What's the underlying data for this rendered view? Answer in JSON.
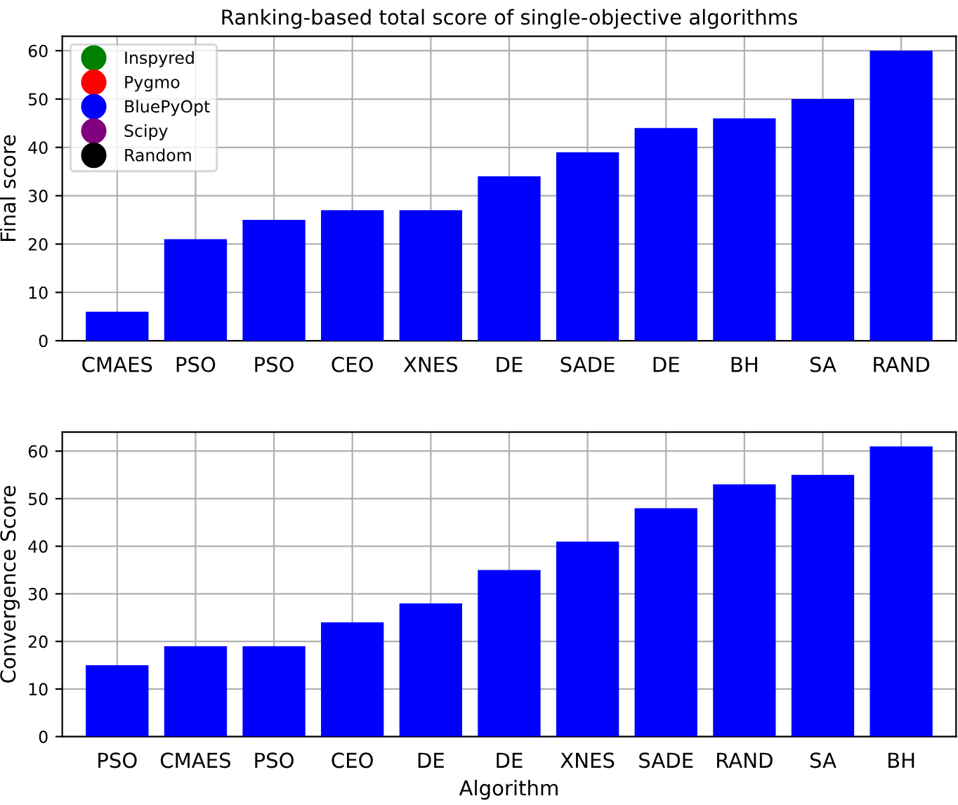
{
  "chart_data": [
    {
      "type": "bar",
      "title": "Ranking-based total score of single-objective algorithms",
      "ylabel": "Final score",
      "categories": [
        "CMAES",
        "PSO",
        "PSO",
        "CEO",
        "XNES",
        "DE",
        "SADE",
        "DE",
        "BH",
        "SA",
        "RAND"
      ],
      "series": [
        {
          "name": "Inspyred",
          "type": "scatter",
          "color": "#008000",
          "values": [
            null,
            null,
            null,
            null,
            null,
            null,
            null,
            null,
            null,
            null,
            null
          ]
        },
        {
          "name": "Pygmo",
          "type": "scatter",
          "color": "#ff0000",
          "values": [
            null,
            null,
            null,
            null,
            null,
            null,
            null,
            null,
            null,
            null,
            null
          ]
        },
        {
          "name": "BluePyOpt",
          "type": "scatter",
          "color": "#0000ff",
          "values": [
            null,
            null,
            null,
            null,
            null,
            null,
            null,
            null,
            null,
            null,
            null
          ]
        },
        {
          "name": "Scipy",
          "type": "scatter",
          "color": "#800080",
          "values": [
            null,
            null,
            null,
            null,
            null,
            null,
            null,
            null,
            null,
            null,
            null
          ]
        },
        {
          "name": "Random",
          "type": "scatter",
          "color": "#000000",
          "values": [
            null,
            null,
            null,
            null,
            null,
            null,
            null,
            null,
            null,
            null,
            null
          ]
        },
        {
          "color": "#0000ff",
          "values": [
            6,
            21,
            25,
            27,
            27,
            34,
            39,
            44,
            46,
            50,
            60
          ]
        }
      ],
      "ylim": [
        0,
        63
      ],
      "yticks": [
        0,
        10,
        20,
        30,
        40,
        50,
        60
      ],
      "grid": true,
      "legend": "top left"
    },
    {
      "type": "bar",
      "ylabel": "Convergence Score",
      "xlabel": "Algorithm",
      "categories": [
        "PSO",
        "CMAES",
        "PSO",
        "CEO",
        "DE",
        "DE",
        "XNES",
        "SADE",
        "RAND",
        "SA",
        "BH"
      ],
      "series": [
        {
          "color": "#0000ff",
          "values": [
            15,
            19,
            19,
            24,
            28,
            35,
            41,
            48,
            53,
            55,
            61
          ]
        }
      ],
      "ylim": [
        0,
        64
      ],
      "yticks": [
        0,
        10,
        20,
        30,
        40,
        50,
        60
      ],
      "grid": true
    }
  ]
}
